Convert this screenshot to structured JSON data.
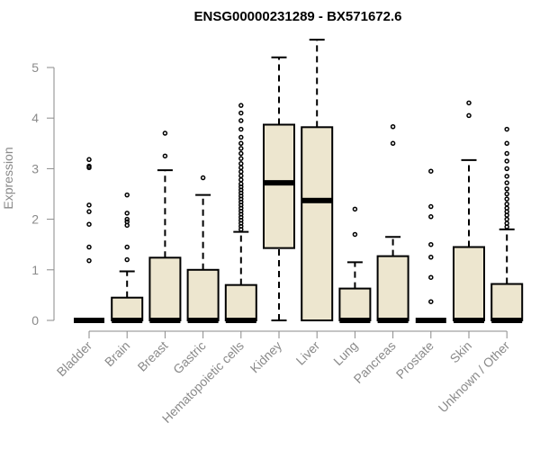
{
  "chart_data": {
    "type": "box",
    "title": "ENSG00000231289 - BX571672.6",
    "xlabel": "",
    "ylabel": "Expression",
    "ylim": [
      0,
      5.5
    ],
    "yticks": [
      "0",
      "1",
      "2",
      "3",
      "4",
      "5"
    ],
    "grid": false,
    "colors": {
      "box_fill": "#ede6cf",
      "stroke": "#000000",
      "axis": "#8a8a8a"
    },
    "categories": [
      "Bladder",
      "Brain",
      "Breast",
      "Gastric",
      "Hematopoietic cells",
      "Kidney",
      "Liver",
      "Lung",
      "Pancreas",
      "Prostate",
      "Skin",
      "Unknown / Other"
    ],
    "boxes": [
      {
        "name": "Bladder",
        "min": 0,
        "q1": 0,
        "median": 0,
        "q3": 0,
        "max": 0,
        "outliers": [
          1.18,
          1.45,
          1.9,
          2.15,
          2.28,
          3.02,
          3.05,
          3.18
        ]
      },
      {
        "name": "Brain",
        "min": 0,
        "q1": 0,
        "median": 0,
        "q3": 0.45,
        "max": 0.97,
        "outliers": [
          1.2,
          1.45,
          1.88,
          1.95,
          2.0,
          2.12,
          2.48
        ]
      },
      {
        "name": "Breast",
        "min": 0,
        "q1": 0,
        "median": 0,
        "q3": 1.24,
        "max": 2.97,
        "outliers": [
          3.25,
          3.7
        ]
      },
      {
        "name": "Gastric",
        "min": 0,
        "q1": 0,
        "median": 0,
        "q3": 1.0,
        "max": 2.48,
        "outliers": [
          2.82
        ]
      },
      {
        "name": "Hematopoietic cells",
        "min": 0,
        "q1": 0,
        "median": 0,
        "q3": 0.7,
        "max": 1.75,
        "outliers": [
          1.8,
          1.86,
          1.92,
          1.98,
          2.04,
          2.1,
          2.16,
          2.22,
          2.28,
          2.34,
          2.4,
          2.46,
          2.52,
          2.58,
          2.64,
          2.7,
          2.78,
          2.86,
          2.94,
          3.02,
          3.1,
          3.2,
          3.3,
          3.4,
          3.5,
          3.62,
          3.78,
          3.95,
          4.1,
          4.25
        ]
      },
      {
        "name": "Kidney",
        "min": 0,
        "q1": 1.43,
        "median": 2.72,
        "q3": 3.87,
        "max": 5.2,
        "outliers": []
      },
      {
        "name": "Liver",
        "min": 0,
        "q1": 0,
        "median": 2.37,
        "q3": 3.82,
        "max": 5.55,
        "outliers": []
      },
      {
        "name": "Lung",
        "min": 0,
        "q1": 0,
        "median": 0,
        "q3": 0.63,
        "max": 1.15,
        "outliers": [
          1.7,
          2.2
        ]
      },
      {
        "name": "Pancreas",
        "min": 0,
        "q1": 0,
        "median": 0,
        "q3": 1.27,
        "max": 1.65,
        "outliers": [
          3.5,
          3.83
        ]
      },
      {
        "name": "Prostate",
        "min": 0,
        "q1": 0,
        "median": 0,
        "q3": 0,
        "max": 0,
        "outliers": [
          0.37,
          0.85,
          1.25,
          1.5,
          2.05,
          2.25,
          2.95
        ]
      },
      {
        "name": "Skin",
        "min": 0,
        "q1": 0,
        "median": 0,
        "q3": 1.45,
        "max": 3.17,
        "outliers": [
          4.05,
          4.3
        ]
      },
      {
        "name": "Unknown / Other",
        "min": 0,
        "q1": 0,
        "median": 0,
        "q3": 0.72,
        "max": 1.8,
        "outliers": [
          1.85,
          1.92,
          2.0,
          2.08,
          2.15,
          2.22,
          2.3,
          2.4,
          2.5,
          2.6,
          2.72,
          2.85,
          3.0,
          3.15,
          3.3,
          3.5,
          3.78
        ]
      }
    ]
  }
}
